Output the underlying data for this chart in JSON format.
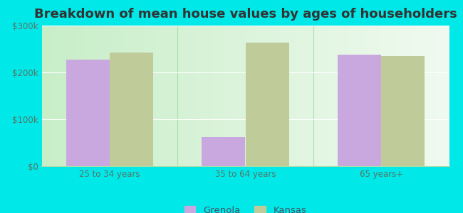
{
  "title": "Breakdown of mean house values by ages of householders",
  "categories": [
    "25 to 34 years",
    "35 to 64 years",
    "65 years+"
  ],
  "grenola_values": [
    228000,
    62000,
    238000
  ],
  "kansas_values": [
    242000,
    263000,
    235000
  ],
  "grenola_color": "#c9a8e0",
  "kansas_color": "#bfcc99",
  "background_outer": "#00e8e8",
  "background_inner_left": "#c8eec8",
  "background_inner_right": "#f0faf0",
  "ylim": [
    0,
    300000
  ],
  "yticks": [
    0,
    100000,
    200000,
    300000
  ],
  "ytick_labels": [
    "$0",
    "$100k",
    "$200k",
    "$300k"
  ],
  "legend_labels": [
    "Grenola",
    "Kansas"
  ],
  "bar_width": 0.32,
  "title_fontsize": 13,
  "tick_fontsize": 8.5,
  "legend_fontsize": 9.5,
  "grid_color": "#ffffff",
  "separator_color": "#aaddaa"
}
